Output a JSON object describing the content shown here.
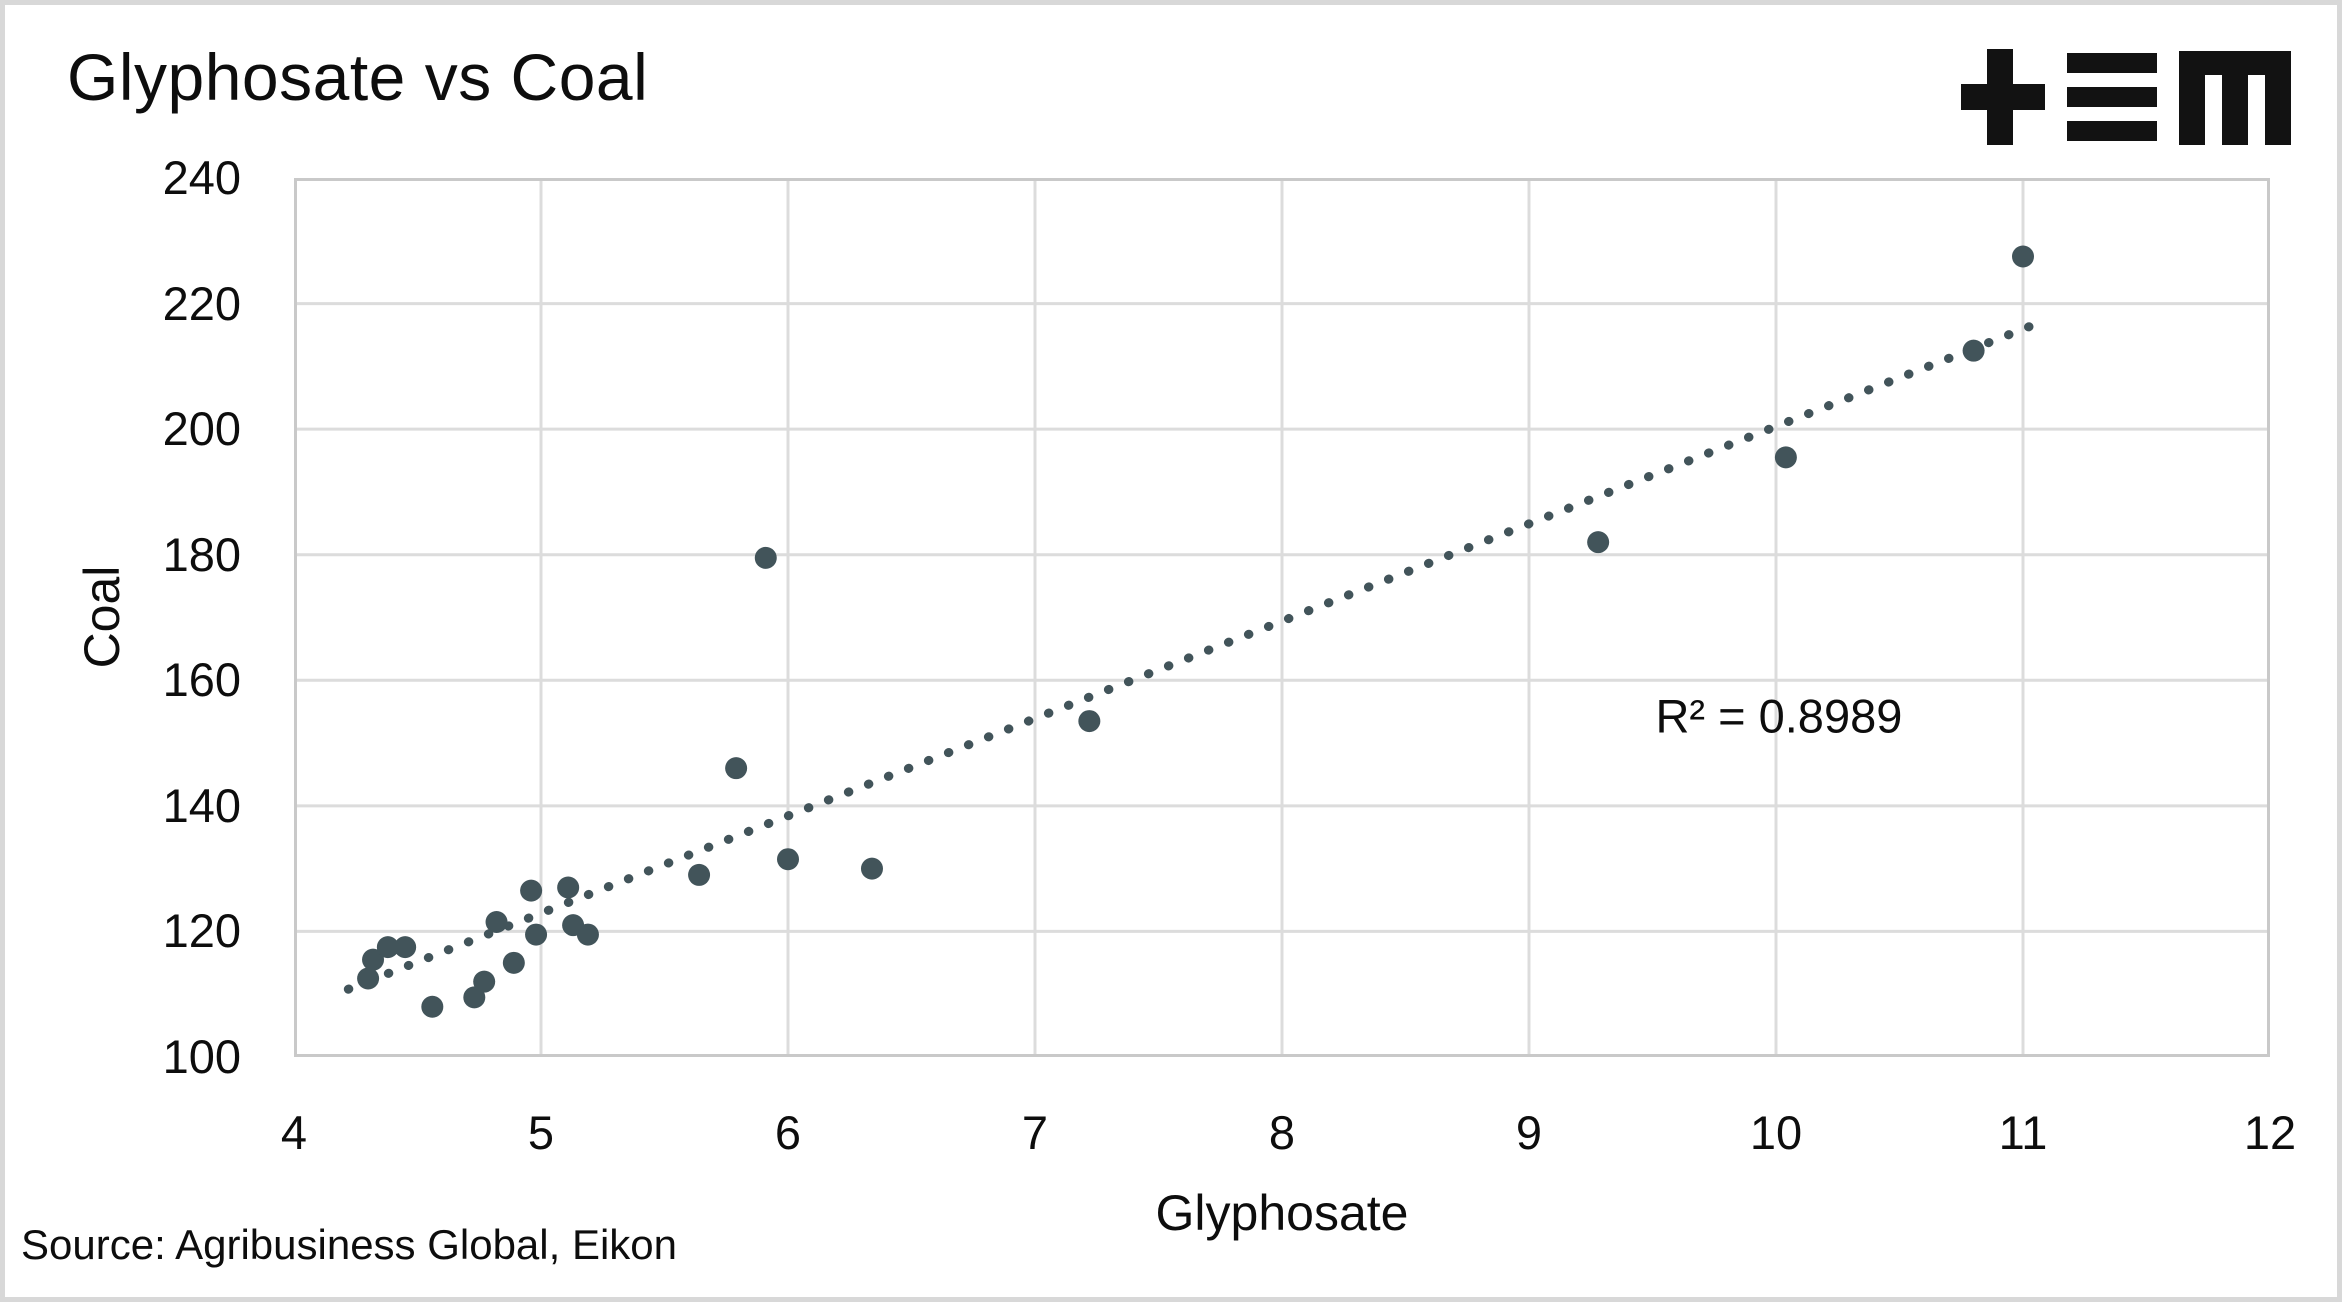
{
  "header": {
    "title": "Glyphosate vs Coal"
  },
  "logo": {
    "name": "tem-logo",
    "color": "#121212"
  },
  "source": {
    "label": "Source: Agribusiness Global, Eikon"
  },
  "chart_data": {
    "type": "scatter",
    "title": "Glyphosate vs Coal",
    "xlabel": "Glyphosate",
    "ylabel": "Coal",
    "xlim": [
      4,
      12
    ],
    "ylim": [
      100,
      240
    ],
    "xticks": [
      4,
      5,
      6,
      7,
      8,
      9,
      10,
      11,
      12
    ],
    "yticks": [
      100,
      120,
      140,
      160,
      180,
      200,
      220,
      240
    ],
    "grid": true,
    "legend_position": "none",
    "points": [
      [
        4.3,
        112.5
      ],
      [
        4.32,
        115.5
      ],
      [
        4.38,
        117.5
      ],
      [
        4.45,
        117.5
      ],
      [
        4.56,
        108
      ],
      [
        4.73,
        109.5
      ],
      [
        4.77,
        112
      ],
      [
        4.82,
        121.5
      ],
      [
        4.89,
        115
      ],
      [
        4.96,
        126.5
      ],
      [
        4.98,
        119.5
      ],
      [
        5.11,
        127
      ],
      [
        5.13,
        121
      ],
      [
        5.19,
        119.5
      ],
      [
        5.64,
        129
      ],
      [
        5.79,
        146
      ],
      [
        5.91,
        179.5
      ],
      [
        6.0,
        131.5
      ],
      [
        6.34,
        130
      ],
      [
        7.22,
        153.5
      ],
      [
        9.28,
        182
      ],
      [
        10.04,
        195.5
      ],
      [
        10.8,
        212.5
      ],
      [
        11.0,
        227.5
      ]
    ],
    "trendline": {
      "style": "dotted",
      "x1": 4.22,
      "y1": 110.8,
      "x2": 11.03,
      "y2": 216.4
    },
    "annotation": {
      "text": "R² = 0.8989",
      "x": 9.51,
      "y": 154.5
    },
    "colors": {
      "point": "#42545a",
      "trend": "#42545a",
      "grid": "#dcdcdc",
      "border": "#c9c9c9",
      "text": "#0d0d0d"
    }
  }
}
